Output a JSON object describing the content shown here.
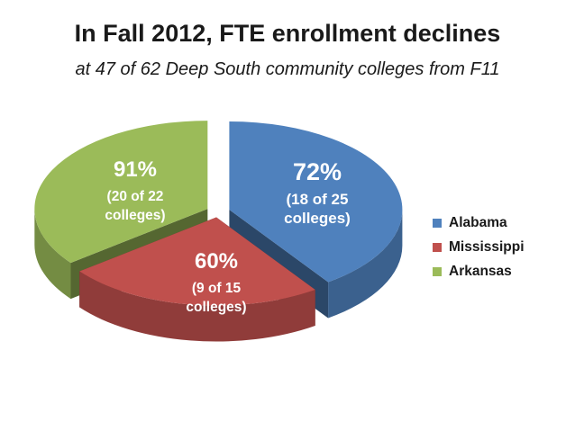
{
  "chart_data": {
    "type": "pie",
    "title": "In Fall 2012, FTE enrollment declines",
    "subtitle": "at 47 of 62 Deep South community colleges from F11",
    "slices": [
      {
        "name": "Alabama",
        "value": 25,
        "percent_label": "72%",
        "count_label": [
          "(18 of 25",
          "colleges)"
        ],
        "color": "#4f81bd"
      },
      {
        "name": "Mississippi",
        "value": 15,
        "percent_label": "60%",
        "count_label": [
          "(9 of 15",
          "colleges)"
        ],
        "color": "#c0504d"
      },
      {
        "name": "Arkansas",
        "value": 22,
        "percent_label": "91%",
        "count_label": [
          "(20 of 22",
          "colleges)"
        ],
        "color": "#9bbb59"
      }
    ],
    "legend_position": "right"
  }
}
